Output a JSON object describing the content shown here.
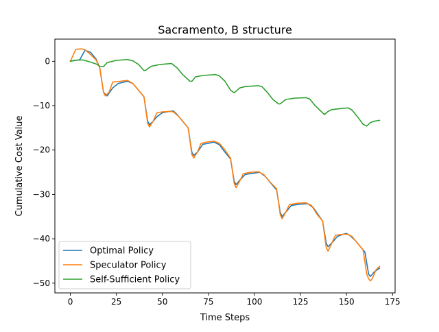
{
  "chart_data": {
    "type": "line",
    "title": "Sacramento, B structure",
    "xlabel": "Time Steps",
    "ylabel": "Cumulative Cost Value",
    "xlim": [
      -8.4,
      176.4
    ],
    "ylim": [
      -52.2,
      5.0
    ],
    "xticks": [
      0,
      25,
      50,
      75,
      100,
      125,
      150,
      175
    ],
    "yticks": [
      0,
      -10,
      -20,
      -30,
      -40,
      -50
    ],
    "legend_position": "lower-left",
    "grid": false,
    "series": [
      {
        "name": "Optimal Policy",
        "color": "#1f77b4",
        "points": [
          [
            0,
            0
          ],
          [
            2,
            0.2
          ],
          [
            5,
            0.3
          ],
          [
            8,
            2.5
          ],
          [
            11,
            2
          ],
          [
            14,
            0.5
          ],
          [
            16,
            -1.5
          ],
          [
            18,
            -7
          ],
          [
            20,
            -7.8
          ],
          [
            23,
            -6
          ],
          [
            26,
            -5
          ],
          [
            29,
            -4.7
          ],
          [
            31,
            -4.5
          ],
          [
            34,
            -5
          ],
          [
            36,
            -6
          ],
          [
            38,
            -7
          ],
          [
            40,
            -8
          ],
          [
            42,
            -13.5
          ],
          [
            43,
            -14.3
          ],
          [
            45,
            -13.5
          ],
          [
            47,
            -12.5
          ],
          [
            50,
            -11.6
          ],
          [
            54,
            -11.3
          ],
          [
            56,
            -11.2
          ],
          [
            58,
            -12
          ],
          [
            61,
            -13.5
          ],
          [
            64,
            -15
          ],
          [
            66,
            -20.5
          ],
          [
            67,
            -21.2
          ],
          [
            69,
            -20.5
          ],
          [
            72,
            -18.7
          ],
          [
            75,
            -18.5
          ],
          [
            78,
            -18.2
          ],
          [
            81,
            -18.8
          ],
          [
            84,
            -20.5
          ],
          [
            87,
            -22
          ],
          [
            89,
            -27
          ],
          [
            90,
            -27.8
          ],
          [
            92,
            -26.8
          ],
          [
            95,
            -25.5
          ],
          [
            100,
            -25.2
          ],
          [
            103,
            -25
          ],
          [
            106,
            -26
          ],
          [
            109,
            -27.5
          ],
          [
            112,
            -29
          ],
          [
            114,
            -34
          ],
          [
            115,
            -35
          ],
          [
            117,
            -34
          ],
          [
            120,
            -32.5
          ],
          [
            125,
            -32.2
          ],
          [
            129,
            -32.1
          ],
          [
            132,
            -33
          ],
          [
            135,
            -34.8
          ],
          [
            137,
            -36
          ],
          [
            139,
            -41
          ],
          [
            140,
            -41.8
          ],
          [
            143,
            -40.5
          ],
          [
            145,
            -39.5
          ],
          [
            148,
            -39
          ],
          [
            150,
            -38.8
          ],
          [
            152,
            -39.3
          ],
          [
            155,
            -40.5
          ],
          [
            158,
            -42
          ],
          [
            160,
            -43
          ],
          [
            162,
            -48
          ],
          [
            163,
            -48.5
          ],
          [
            165,
            -47.5
          ],
          [
            168,
            -46.6
          ]
        ]
      },
      {
        "name": "Speculator Policy",
        "color": "#ff7f0e",
        "points": [
          [
            0,
            0
          ],
          [
            3,
            2.7
          ],
          [
            6,
            2.8
          ],
          [
            8,
            2.6
          ],
          [
            11,
            1.5
          ],
          [
            14,
            0.3
          ],
          [
            16,
            -1.5
          ],
          [
            18,
            -7
          ],
          [
            19,
            -7.8
          ],
          [
            21,
            -7
          ],
          [
            23,
            -4.7
          ],
          [
            27,
            -4.5
          ],
          [
            31,
            -4.3
          ],
          [
            34,
            -5
          ],
          [
            37,
            -6.5
          ],
          [
            39,
            -7.5
          ],
          [
            40,
            -8
          ],
          [
            42,
            -14
          ],
          [
            43,
            -14.8
          ],
          [
            45,
            -13.5
          ],
          [
            47,
            -11.6
          ],
          [
            50,
            -11.4
          ],
          [
            54,
            -11.3
          ],
          [
            56,
            -11.4
          ],
          [
            59,
            -12.5
          ],
          [
            62,
            -14
          ],
          [
            64,
            -15
          ],
          [
            66,
            -21
          ],
          [
            67,
            -21.8
          ],
          [
            69,
            -20.5
          ],
          [
            71,
            -18.5
          ],
          [
            74,
            -18.2
          ],
          [
            78,
            -18
          ],
          [
            81,
            -18.5
          ],
          [
            84,
            -20
          ],
          [
            87,
            -21.8
          ],
          [
            89,
            -27.5
          ],
          [
            90,
            -28.5
          ],
          [
            92,
            -27
          ],
          [
            94,
            -25.3
          ],
          [
            98,
            -25
          ],
          [
            102,
            -24.9
          ],
          [
            105,
            -25.5
          ],
          [
            108,
            -27
          ],
          [
            112,
            -28.7
          ],
          [
            114,
            -34.5
          ],
          [
            115,
            -35.5
          ],
          [
            117,
            -34
          ],
          [
            119,
            -32.3
          ],
          [
            123,
            -32
          ],
          [
            128,
            -31.9
          ],
          [
            131,
            -32.5
          ],
          [
            134,
            -34.5
          ],
          [
            137,
            -36
          ],
          [
            139,
            -42
          ],
          [
            140,
            -42.8
          ],
          [
            142,
            -41
          ],
          [
            144,
            -39.2
          ],
          [
            148,
            -39
          ],
          [
            151,
            -39
          ],
          [
            153,
            -39.5
          ],
          [
            156,
            -41
          ],
          [
            159,
            -42.5
          ],
          [
            161,
            -48
          ],
          [
            162,
            -49
          ],
          [
            163,
            -49.5
          ],
          [
            164,
            -49
          ],
          [
            166,
            -47
          ],
          [
            168,
            -46.2
          ]
        ]
      },
      {
        "name": "Self-Sufficient Policy",
        "color": "#2ca02c",
        "points": [
          [
            0,
            0
          ],
          [
            4,
            0.3
          ],
          [
            7,
            0.3
          ],
          [
            11,
            -0.2
          ],
          [
            14,
            -0.6
          ],
          [
            16,
            -1.1
          ],
          [
            18,
            -1.2
          ],
          [
            20,
            -0.3
          ],
          [
            25,
            0.2
          ],
          [
            31,
            0.4
          ],
          [
            34,
            0.1
          ],
          [
            37,
            -0.7
          ],
          [
            40,
            -2.1
          ],
          [
            41,
            -2
          ],
          [
            44,
            -1.1
          ],
          [
            49,
            -0.7
          ],
          [
            55,
            -0.5
          ],
          [
            58,
            -1.5
          ],
          [
            61,
            -3
          ],
          [
            65,
            -4.5
          ],
          [
            66,
            -4.5
          ],
          [
            68,
            -3.5
          ],
          [
            72,
            -3.2
          ],
          [
            79,
            -3
          ],
          [
            81,
            -3.3
          ],
          [
            84,
            -4.5
          ],
          [
            87,
            -6.5
          ],
          [
            89,
            -7.1
          ],
          [
            92,
            -6
          ],
          [
            95,
            -5.7
          ],
          [
            102,
            -5.5
          ],
          [
            104,
            -5.7
          ],
          [
            107,
            -7
          ],
          [
            110,
            -8.6
          ],
          [
            113,
            -9.6
          ],
          [
            114,
            -9.6
          ],
          [
            117,
            -8.6
          ],
          [
            122,
            -8.3
          ],
          [
            128,
            -8.2
          ],
          [
            130,
            -8.5
          ],
          [
            133,
            -10
          ],
          [
            136,
            -11.2
          ],
          [
            138,
            -12
          ],
          [
            140,
            -11.3
          ],
          [
            142,
            -10.9
          ],
          [
            148,
            -10.6
          ],
          [
            151,
            -10.5
          ],
          [
            153,
            -11
          ],
          [
            156,
            -12.5
          ],
          [
            159,
            -14.2
          ],
          [
            161,
            -14.6
          ],
          [
            163,
            -13.8
          ],
          [
            165,
            -13.5
          ],
          [
            168,
            -13.3
          ]
        ]
      }
    ]
  }
}
